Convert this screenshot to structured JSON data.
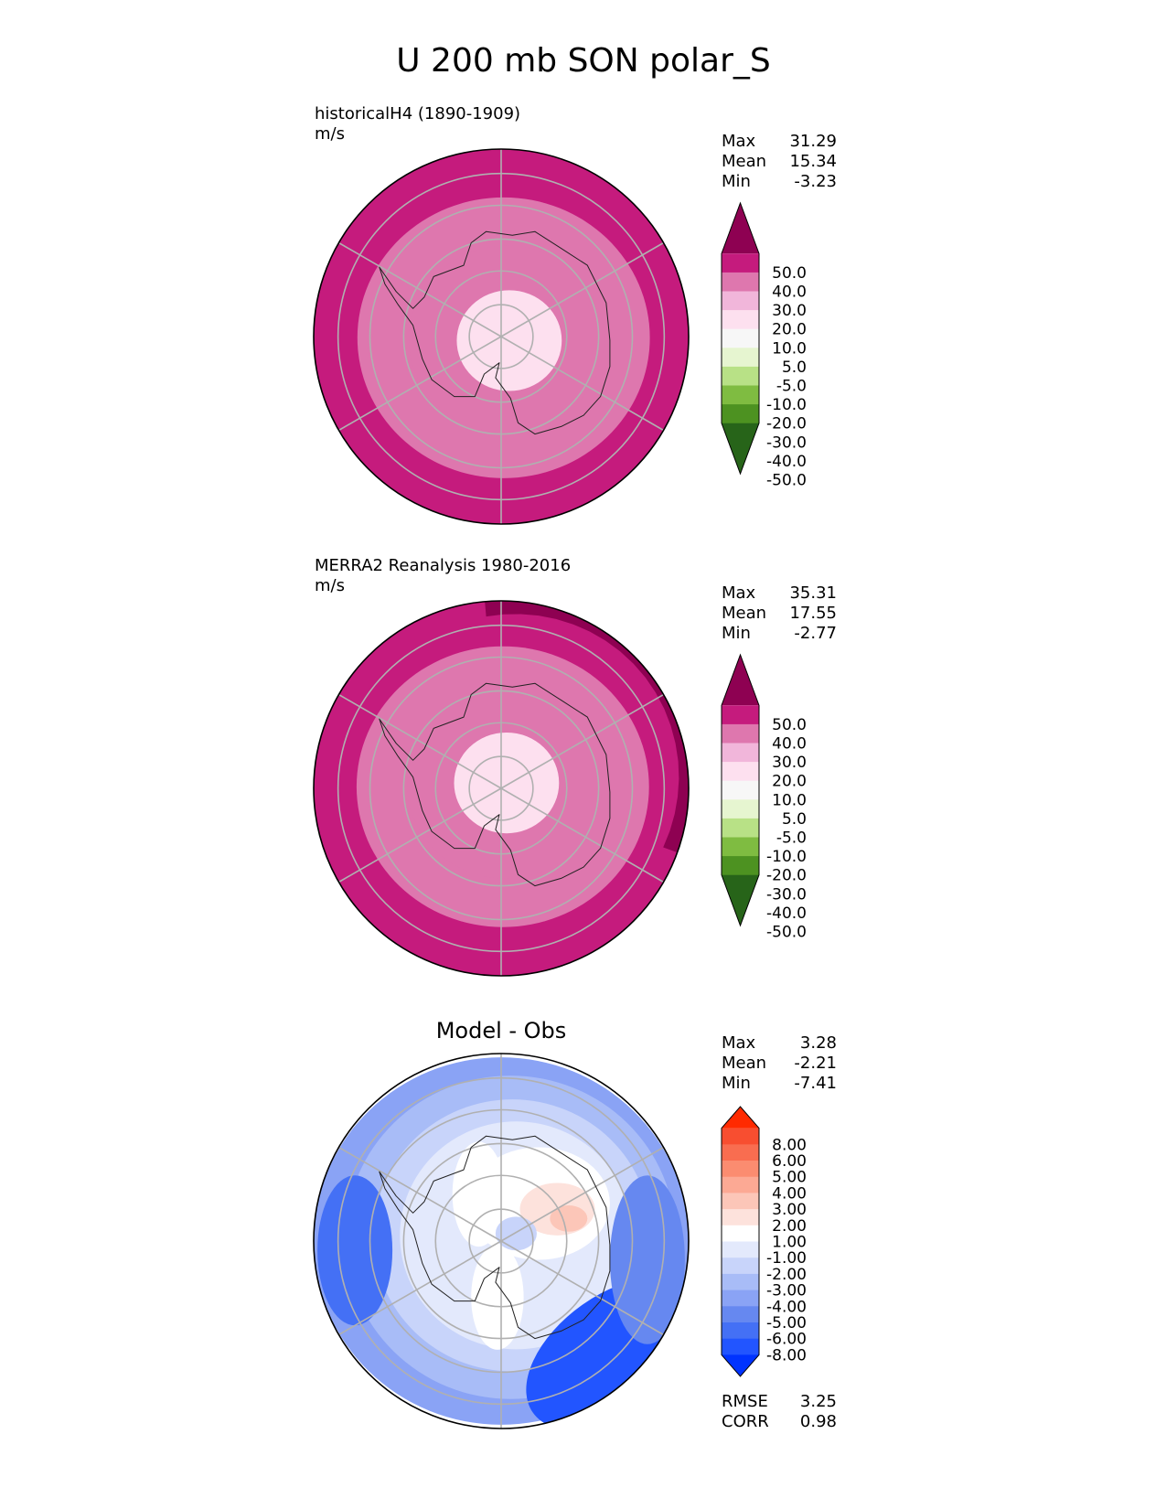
{
  "figure": {
    "title": "U 200 mb SON polar_S"
  },
  "colors": {
    "land_outline": "#222222",
    "gridline": "#b0b0b0",
    "boundary": "#000000",
    "piyg": [
      "#276419",
      "#4d9221",
      "#7fbc41",
      "#b8e186",
      "#e6f5d0",
      "#f7f7f7",
      "#fde0ef",
      "#f1b6da",
      "#de77ae",
      "#c51b7d",
      "#8e0152"
    ],
    "bwr": [
      "#0033ff",
      "#2255ff",
      "#4470f5",
      "#6688f0",
      "#8aa3f5",
      "#a8bcf7",
      "#c8d4fa",
      "#e3e9fc",
      "#ffffff",
      "#fde2dc",
      "#fcc6b8",
      "#fca994",
      "#fb8c70",
      "#f96d50",
      "#f84e30",
      "#ff2a00"
    ]
  },
  "chart_data": [
    {
      "type": "heatmap",
      "projection": "south-polar-stereographic",
      "title": "historicalH4 (1890-1909)",
      "units": "m/s",
      "colormap": "piyg",
      "levels": [
        -50,
        -40,
        -30,
        -20,
        -10,
        -5,
        5,
        10,
        20,
        30,
        40,
        50
      ],
      "colorbar_labels": [
        "50.0",
        "40.0",
        "30.0",
        "20.0",
        "10.0",
        "5.0",
        "-5.0",
        "-10.0",
        "-20.0",
        "-30.0",
        "-40.0",
        "-50.0"
      ],
      "stats": [
        {
          "label": "Max",
          "value": "31.29"
        },
        {
          "label": "Mean",
          "value": "15.34"
        },
        {
          "label": "Min",
          "value": "-3.23"
        }
      ],
      "bands": [
        22,
        18,
        12,
        5,
        0
      ],
      "center": [
        0.06,
        0.03
      ],
      "high_sector": null
    },
    {
      "type": "heatmap",
      "projection": "south-polar-stereographic",
      "title": "MERRA2 Reanalysis 1980-2016",
      "units": "m/s",
      "colormap": "piyg",
      "levels": [
        -50,
        -40,
        -30,
        -20,
        -10,
        -5,
        5,
        10,
        20,
        30,
        40,
        50
      ],
      "colorbar_labels": [
        "50.0",
        "40.0",
        "30.0",
        "20.0",
        "10.0",
        "5.0",
        "-5.0",
        "-10.0",
        "-20.0",
        "-30.0",
        "-40.0",
        "-50.0"
      ],
      "stats": [
        {
          "label": "Max",
          "value": "35.31"
        },
        {
          "label": "Mean",
          "value": "17.55"
        },
        {
          "label": "Min",
          "value": "-2.77"
        }
      ],
      "bands": [
        22,
        17,
        12,
        6,
        0
      ],
      "center": [
        0.04,
        -0.04
      ],
      "high_sector": 32
    },
    {
      "type": "heatmap",
      "projection": "south-polar-stereographic",
      "title": "Model - Obs",
      "units": "",
      "colormap": "bwr",
      "levels": [
        -8,
        -6,
        -5,
        -4,
        -3,
        -2,
        -1,
        1,
        2,
        3,
        4,
        5,
        6,
        8
      ],
      "colorbar_labels": [
        "8.00",
        "6.00",
        "5.00",
        "4.00",
        "3.00",
        "2.00",
        "1.00",
        "-1.00",
        "-2.00",
        "-3.00",
        "-4.00",
        "-5.00",
        "-6.00",
        "-8.00"
      ],
      "stats": [
        {
          "label": "Max",
          "value": "3.28"
        },
        {
          "label": "Mean",
          "value": "-2.21"
        },
        {
          "label": "Min",
          "value": "-7.41"
        }
      ],
      "metrics": [
        {
          "label": "RMSE",
          "value": "3.25"
        },
        {
          "label": "CORR",
          "value": "0.98"
        }
      ]
    }
  ]
}
